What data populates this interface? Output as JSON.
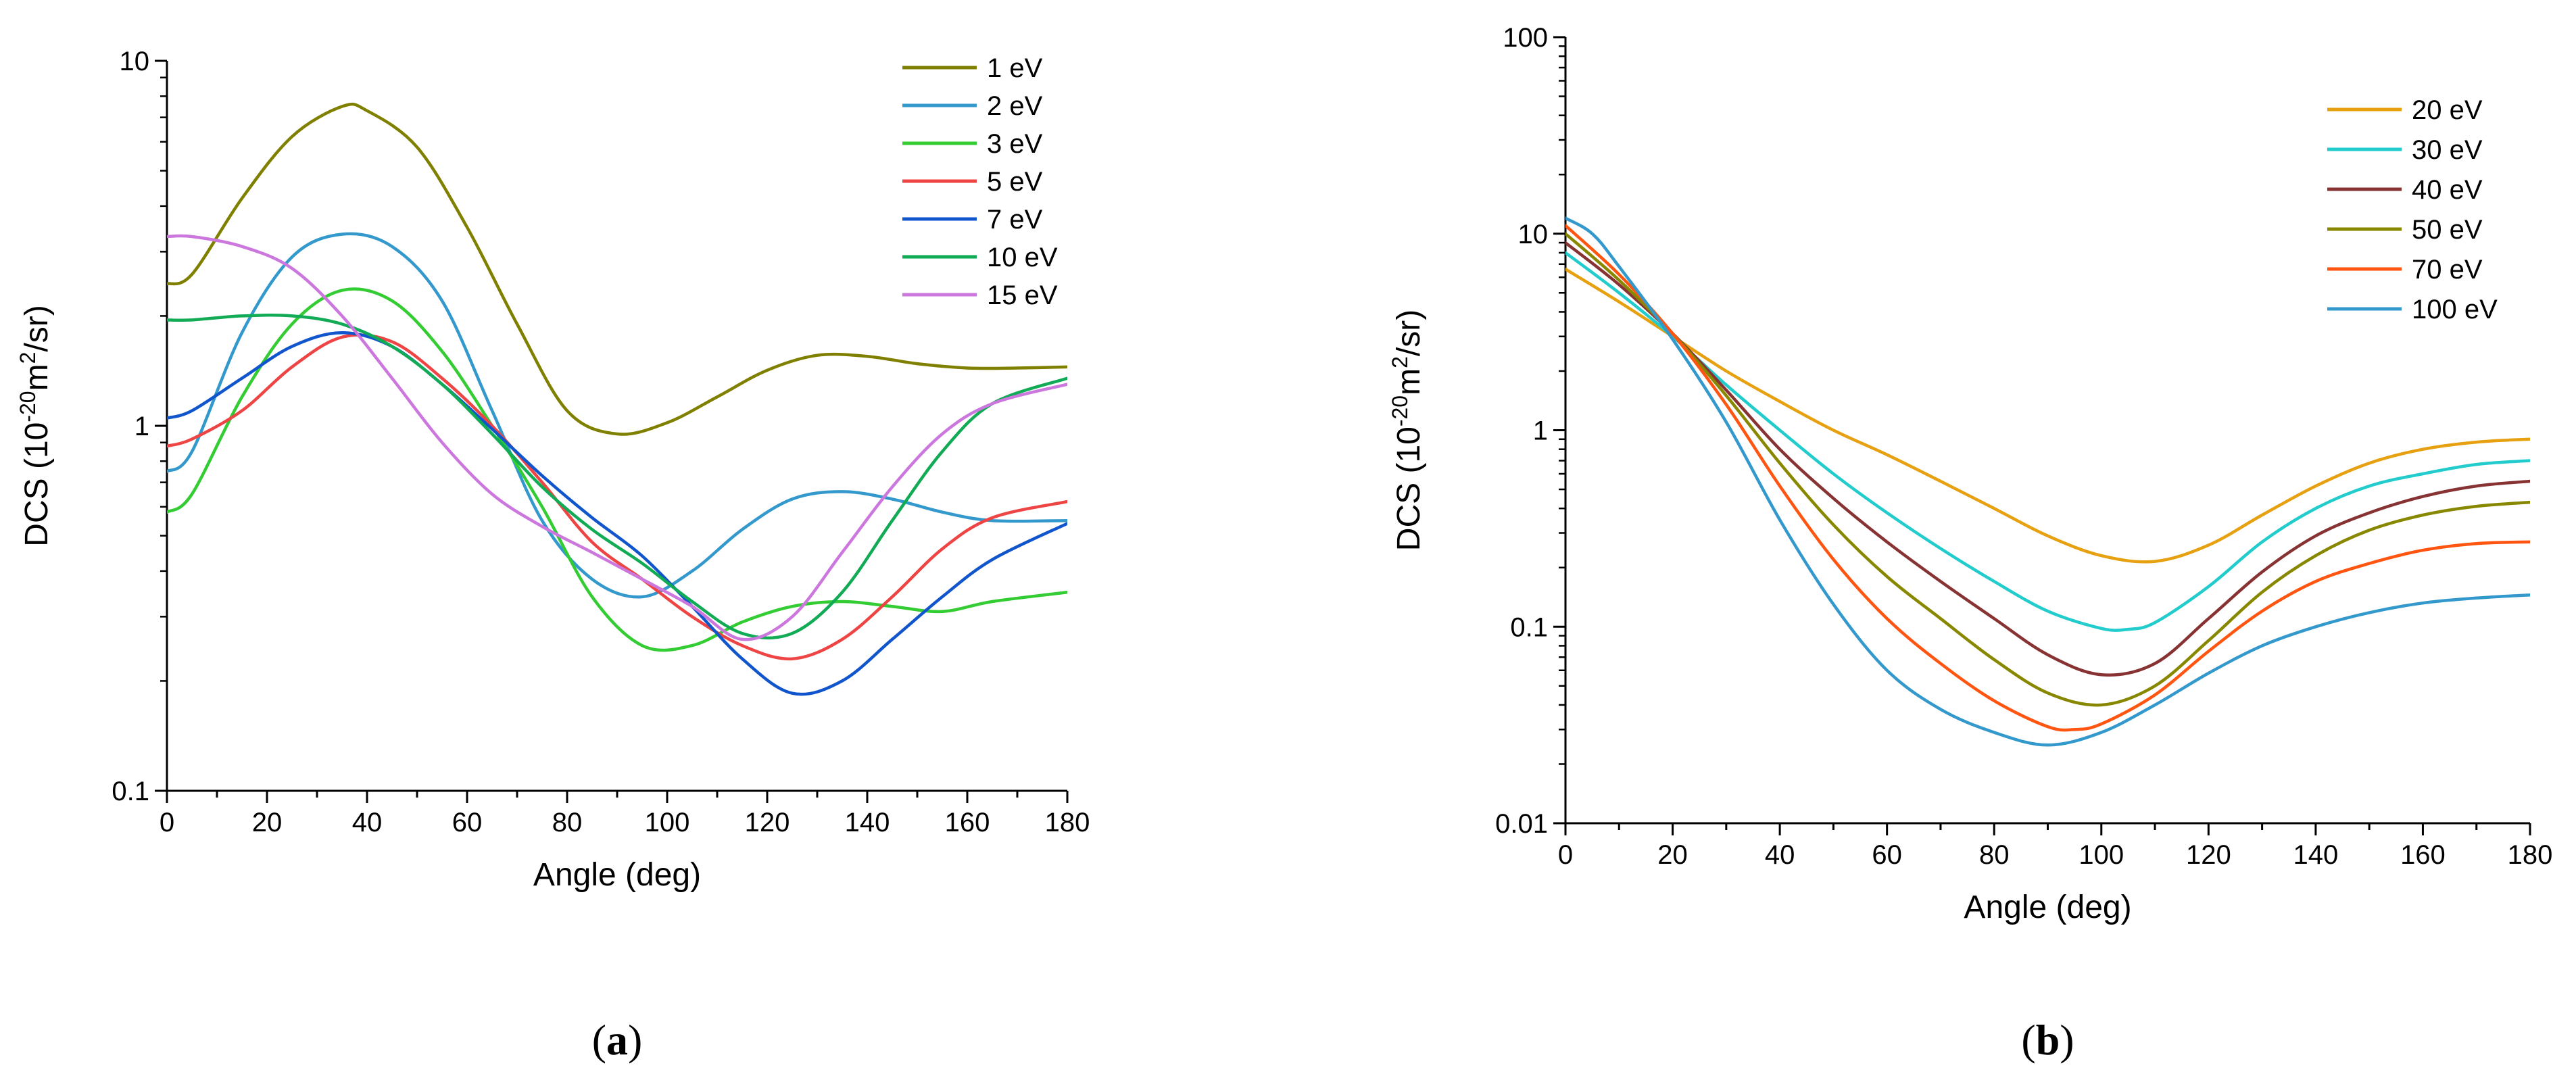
{
  "chart_data": [
    {
      "panel": "a",
      "type": "line",
      "panel_label": "(a)",
      "panel_letter": "a",
      "xlabel": "Angle (deg)",
      "ylabel_parts": [
        "DCS (10",
        "-20",
        "m",
        "2",
        "/sr)"
      ],
      "xlim": [
        0,
        180
      ],
      "ylim": [
        0.1,
        10
      ],
      "yscale": "log",
      "x_ticks": [
        "0",
        "20",
        "40",
        "60",
        "80",
        "100",
        "120",
        "140",
        "160",
        "180"
      ],
      "y_ticks": [
        "0.1",
        "1",
        "10"
      ],
      "legend_position": "top-right",
      "series": [
        {
          "name": "1 eV",
          "color": "#808000",
          "x": [
            0,
            5,
            15,
            25,
            35,
            40,
            50,
            60,
            70,
            80,
            90,
            100,
            110,
            120,
            130,
            140,
            150,
            160,
            170,
            180
          ],
          "y": [
            2.45,
            2.6,
            4.2,
            6.2,
            7.5,
            7.3,
            5.8,
            3.5,
            1.9,
            1.1,
            0.95,
            1.02,
            1.2,
            1.42,
            1.56,
            1.55,
            1.48,
            1.44,
            1.44,
            1.45
          ]
        },
        {
          "name": "2 eV",
          "color": "#3399cc",
          "x": [
            0,
            5,
            15,
            25,
            35,
            45,
            55,
            65,
            75,
            85,
            95,
            105,
            115,
            125,
            135,
            145,
            155,
            165,
            180
          ],
          "y": [
            0.75,
            0.85,
            1.8,
            2.9,
            3.35,
            3.1,
            2.2,
            1.1,
            0.55,
            0.38,
            0.34,
            0.4,
            0.52,
            0.63,
            0.66,
            0.63,
            0.58,
            0.55,
            0.55
          ]
        },
        {
          "name": "3 eV",
          "color": "#33cc33",
          "x": [
            0,
            5,
            15,
            25,
            35,
            45,
            55,
            65,
            75,
            85,
            95,
            105,
            115,
            125,
            135,
            145,
            155,
            165,
            180
          ],
          "y": [
            0.58,
            0.65,
            1.2,
            1.9,
            2.35,
            2.2,
            1.6,
            1.0,
            0.6,
            0.34,
            0.25,
            0.25,
            0.29,
            0.32,
            0.33,
            0.32,
            0.31,
            0.33,
            0.35
          ]
        },
        {
          "name": "5 eV",
          "color": "#ee4444",
          "x": [
            0,
            5,
            15,
            25,
            35,
            45,
            55,
            65,
            75,
            85,
            95,
            105,
            115,
            125,
            135,
            145,
            155,
            165,
            180
          ],
          "y": [
            0.88,
            0.92,
            1.1,
            1.45,
            1.75,
            1.7,
            1.35,
            1.0,
            0.7,
            0.48,
            0.38,
            0.3,
            0.25,
            0.23,
            0.26,
            0.34,
            0.46,
            0.56,
            0.62
          ]
        },
        {
          "name": "7 eV",
          "color": "#1155cc",
          "x": [
            0,
            5,
            15,
            25,
            35,
            45,
            55,
            65,
            75,
            85,
            95,
            105,
            115,
            125,
            135,
            145,
            155,
            165,
            180
          ],
          "y": [
            1.05,
            1.1,
            1.35,
            1.65,
            1.8,
            1.65,
            1.3,
            0.98,
            0.73,
            0.56,
            0.44,
            0.32,
            0.23,
            0.185,
            0.2,
            0.26,
            0.34,
            0.43,
            0.54
          ]
        },
        {
          "name": "10 eV",
          "color": "#11aa55",
          "x": [
            0,
            5,
            15,
            25,
            35,
            45,
            55,
            65,
            75,
            85,
            95,
            105,
            115,
            125,
            135,
            145,
            155,
            165,
            180
          ],
          "y": [
            1.95,
            1.95,
            2.0,
            2.0,
            1.9,
            1.65,
            1.3,
            0.95,
            0.68,
            0.52,
            0.42,
            0.33,
            0.27,
            0.27,
            0.35,
            0.55,
            0.85,
            1.15,
            1.35
          ]
        },
        {
          "name": "15 eV",
          "color": "#cc77dd",
          "x": [
            0,
            5,
            15,
            25,
            35,
            45,
            55,
            65,
            75,
            85,
            95,
            105,
            115,
            125,
            135,
            145,
            155,
            165,
            180
          ],
          "y": [
            3.3,
            3.3,
            3.1,
            2.7,
            2.0,
            1.35,
            0.9,
            0.65,
            0.53,
            0.45,
            0.38,
            0.32,
            0.26,
            0.3,
            0.45,
            0.68,
            0.95,
            1.15,
            1.3
          ]
        }
      ]
    },
    {
      "panel": "b",
      "type": "line",
      "panel_label": "(b)",
      "panel_letter": "b",
      "xlabel": "Angle (deg)",
      "ylabel_parts": [
        "DCS (10",
        "-20",
        "m",
        "2",
        "/sr)"
      ],
      "xlim": [
        0,
        180
      ],
      "ylim": [
        0.01,
        100
      ],
      "yscale": "log",
      "x_ticks": [
        "0",
        "20",
        "40",
        "60",
        "80",
        "100",
        "120",
        "140",
        "160",
        "180"
      ],
      "y_ticks": [
        "0.01",
        "0.1",
        "1",
        "10",
        "100"
      ],
      "legend_position": "top-right",
      "series": [
        {
          "name": "20 eV",
          "color": "#e6a010",
          "x": [
            0,
            10,
            20,
            30,
            40,
            50,
            60,
            70,
            80,
            90,
            100,
            110,
            120,
            130,
            140,
            150,
            160,
            170,
            180
          ],
          "y": [
            6.6,
            4.5,
            3.0,
            2.0,
            1.4,
            1.0,
            0.75,
            0.55,
            0.4,
            0.29,
            0.23,
            0.215,
            0.26,
            0.37,
            0.52,
            0.68,
            0.8,
            0.87,
            0.9
          ]
        },
        {
          "name": "30 eV",
          "color": "#22cccc",
          "x": [
            0,
            10,
            20,
            30,
            40,
            50,
            60,
            70,
            80,
            90,
            100,
            105,
            110,
            120,
            130,
            140,
            150,
            160,
            170,
            180
          ],
          "y": [
            8.0,
            5.0,
            3.0,
            1.7,
            1.0,
            0.6,
            0.38,
            0.25,
            0.17,
            0.12,
            0.098,
            0.097,
            0.105,
            0.16,
            0.27,
            0.4,
            0.52,
            0.6,
            0.67,
            0.7
          ]
        },
        {
          "name": "40 eV",
          "color": "#883333",
          "x": [
            0,
            10,
            20,
            30,
            40,
            50,
            60,
            70,
            80,
            90,
            100,
            110,
            120,
            130,
            140,
            150,
            160,
            170,
            180
          ],
          "y": [
            9.0,
            5.5,
            3.1,
            1.6,
            0.8,
            0.45,
            0.27,
            0.17,
            0.11,
            0.072,
            0.057,
            0.065,
            0.11,
            0.19,
            0.29,
            0.38,
            0.46,
            0.52,
            0.55
          ]
        },
        {
          "name": "50 eV",
          "color": "#888800",
          "x": [
            0,
            10,
            20,
            30,
            40,
            50,
            60,
            70,
            80,
            90,
            100,
            110,
            120,
            130,
            140,
            150,
            160,
            170,
            180
          ],
          "y": [
            10.0,
            5.8,
            3.1,
            1.5,
            0.68,
            0.33,
            0.18,
            0.11,
            0.068,
            0.046,
            0.04,
            0.05,
            0.085,
            0.15,
            0.23,
            0.31,
            0.37,
            0.41,
            0.43
          ]
        },
        {
          "name": "70 eV",
          "color": "#ff5511",
          "x": [
            0,
            10,
            20,
            30,
            40,
            50,
            60,
            70,
            80,
            90,
            95,
            100,
            110,
            120,
            130,
            140,
            150,
            160,
            170,
            180
          ],
          "y": [
            11.0,
            6.2,
            3.1,
            1.35,
            0.52,
            0.22,
            0.11,
            0.065,
            0.042,
            0.031,
            0.03,
            0.032,
            0.045,
            0.075,
            0.12,
            0.17,
            0.21,
            0.245,
            0.265,
            0.27
          ]
        },
        {
          "name": "100 eV",
          "color": "#3399cc",
          "x": [
            0,
            5,
            10,
            20,
            30,
            40,
            50,
            60,
            70,
            80,
            90,
            100,
            110,
            120,
            130,
            140,
            150,
            160,
            170,
            180
          ],
          "y": [
            12.0,
            10.0,
            6.8,
            2.9,
            1.1,
            0.35,
            0.13,
            0.06,
            0.038,
            0.029,
            0.025,
            0.029,
            0.04,
            0.058,
            0.08,
            0.1,
            0.118,
            0.132,
            0.14,
            0.145
          ]
        }
      ]
    }
  ]
}
